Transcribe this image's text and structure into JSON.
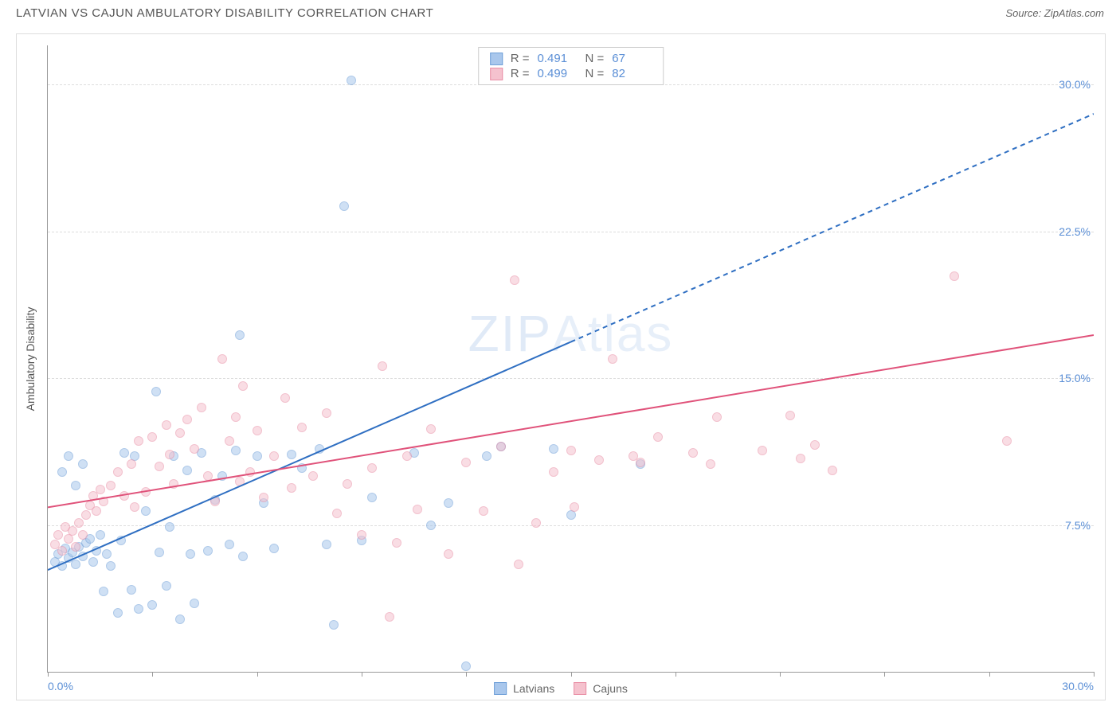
{
  "header": {
    "title": "LATVIAN VS CAJUN AMBULATORY DISABILITY CORRELATION CHART",
    "source": "Source: ZipAtlas.com"
  },
  "watermark": {
    "bold": "ZIP",
    "thin": "Atlas"
  },
  "chart": {
    "type": "scatter",
    "ylabel": "Ambulatory Disability",
    "xlim": [
      0,
      30
    ],
    "ylim": [
      0,
      32
    ],
    "background_color": "#ffffff",
    "grid_color": "#dddddd",
    "axis_color": "#999999",
    "tick_label_color": "#5b8fd6",
    "tick_fontsize": 14,
    "ylabel_fontsize": 14,
    "marker_size": 12,
    "marker_opacity": 0.55,
    "yticks": [
      7.5,
      15.0,
      22.5,
      30.0
    ],
    "ytick_labels": [
      "7.5%",
      "15.0%",
      "22.5%",
      "30.0%"
    ],
    "xticks": [
      0,
      3,
      6,
      9,
      12,
      15,
      18,
      21,
      24,
      27,
      30
    ],
    "xtick_labels_shown": {
      "0": "0.0%",
      "30": "30.0%"
    },
    "series": [
      {
        "name": "Latvians",
        "color_fill": "#a9c7ec",
        "color_stroke": "#6f9fd8",
        "trend": {
          "color": "#2f6fc2",
          "width": 2,
          "x1": 0,
          "y1": 5.2,
          "x2": 30,
          "y2": 28.5,
          "solid_until_x": 15,
          "dash": "6,5"
        },
        "points": [
          [
            0.2,
            5.6
          ],
          [
            0.3,
            6.0
          ],
          [
            0.4,
            5.4
          ],
          [
            0.5,
            6.3
          ],
          [
            0.6,
            5.8
          ],
          [
            0.7,
            6.1
          ],
          [
            0.8,
            5.5
          ],
          [
            0.9,
            6.4
          ],
          [
            1.0,
            5.9
          ],
          [
            1.1,
            6.6
          ],
          [
            0.4,
            10.2
          ],
          [
            0.6,
            11.0
          ],
          [
            0.8,
            9.5
          ],
          [
            1.0,
            10.6
          ],
          [
            1.2,
            6.8
          ],
          [
            1.3,
            5.6
          ],
          [
            1.4,
            6.2
          ],
          [
            1.5,
            7.0
          ],
          [
            1.6,
            4.1
          ],
          [
            1.7,
            6.0
          ],
          [
            1.8,
            5.4
          ],
          [
            2.0,
            3.0
          ],
          [
            2.1,
            6.7
          ],
          [
            2.2,
            11.2
          ],
          [
            2.4,
            4.2
          ],
          [
            2.5,
            11.0
          ],
          [
            2.6,
            3.2
          ],
          [
            2.8,
            8.2
          ],
          [
            3.0,
            3.4
          ],
          [
            3.1,
            14.3
          ],
          [
            3.2,
            6.1
          ],
          [
            3.4,
            4.4
          ],
          [
            3.5,
            7.4
          ],
          [
            3.6,
            11.0
          ],
          [
            3.8,
            2.7
          ],
          [
            4.0,
            10.3
          ],
          [
            4.1,
            6.0
          ],
          [
            4.2,
            3.5
          ],
          [
            4.4,
            11.2
          ],
          [
            4.6,
            6.2
          ],
          [
            4.8,
            8.8
          ],
          [
            5.0,
            10.0
          ],
          [
            5.2,
            6.5
          ],
          [
            5.4,
            11.3
          ],
          [
            5.5,
            17.2
          ],
          [
            5.6,
            5.9
          ],
          [
            6.0,
            11.0
          ],
          [
            6.2,
            8.6
          ],
          [
            6.5,
            6.3
          ],
          [
            7.0,
            11.1
          ],
          [
            7.3,
            10.4
          ],
          [
            7.8,
            11.4
          ],
          [
            8.0,
            6.5
          ],
          [
            8.2,
            2.4
          ],
          [
            8.5,
            23.8
          ],
          [
            8.7,
            30.2
          ],
          [
            9.0,
            6.7
          ],
          [
            9.3,
            8.9
          ],
          [
            10.5,
            11.2
          ],
          [
            11.0,
            7.5
          ],
          [
            11.5,
            8.6
          ],
          [
            12.0,
            0.3
          ],
          [
            12.6,
            11.0
          ],
          [
            13.0,
            11.5
          ],
          [
            14.5,
            11.4
          ],
          [
            15.0,
            8.0
          ],
          [
            17.0,
            10.6
          ]
        ]
      },
      {
        "name": "Cajuns",
        "color_fill": "#f5c2ce",
        "color_stroke": "#e98fa6",
        "trend": {
          "color": "#e0527a",
          "width": 2,
          "x1": 0,
          "y1": 8.4,
          "x2": 30,
          "y2": 17.2,
          "solid_until_x": 30,
          "dash": ""
        },
        "points": [
          [
            0.2,
            6.5
          ],
          [
            0.3,
            7.0
          ],
          [
            0.4,
            6.2
          ],
          [
            0.5,
            7.4
          ],
          [
            0.6,
            6.8
          ],
          [
            0.7,
            7.2
          ],
          [
            0.8,
            6.4
          ],
          [
            0.9,
            7.6
          ],
          [
            1.0,
            7.0
          ],
          [
            1.1,
            8.0
          ],
          [
            1.2,
            8.5
          ],
          [
            1.3,
            9.0
          ],
          [
            1.4,
            8.2
          ],
          [
            1.5,
            9.3
          ],
          [
            1.6,
            8.7
          ],
          [
            1.8,
            9.5
          ],
          [
            2.0,
            10.2
          ],
          [
            2.2,
            9.0
          ],
          [
            2.4,
            10.6
          ],
          [
            2.5,
            8.4
          ],
          [
            2.6,
            11.8
          ],
          [
            2.8,
            9.2
          ],
          [
            3.0,
            12.0
          ],
          [
            3.2,
            10.5
          ],
          [
            3.4,
            12.6
          ],
          [
            3.5,
            11.1
          ],
          [
            3.6,
            9.6
          ],
          [
            3.8,
            12.2
          ],
          [
            4.0,
            12.9
          ],
          [
            4.2,
            11.4
          ],
          [
            4.4,
            13.5
          ],
          [
            4.6,
            10.0
          ],
          [
            4.8,
            8.7
          ],
          [
            5.0,
            16.0
          ],
          [
            5.2,
            11.8
          ],
          [
            5.4,
            13.0
          ],
          [
            5.5,
            9.7
          ],
          [
            5.6,
            14.6
          ],
          [
            5.8,
            10.2
          ],
          [
            6.0,
            12.3
          ],
          [
            6.2,
            8.9
          ],
          [
            6.5,
            11.0
          ],
          [
            6.8,
            14.0
          ],
          [
            7.0,
            9.4
          ],
          [
            7.3,
            12.5
          ],
          [
            7.6,
            10.0
          ],
          [
            8.0,
            13.2
          ],
          [
            8.3,
            8.1
          ],
          [
            8.6,
            9.6
          ],
          [
            9.0,
            7.0
          ],
          [
            9.3,
            10.4
          ],
          [
            9.6,
            15.6
          ],
          [
            9.8,
            2.8
          ],
          [
            10.0,
            6.6
          ],
          [
            10.3,
            11.0
          ],
          [
            10.6,
            8.3
          ],
          [
            11.0,
            12.4
          ],
          [
            11.5,
            6.0
          ],
          [
            12.0,
            10.7
          ],
          [
            12.5,
            8.2
          ],
          [
            13.0,
            11.5
          ],
          [
            13.4,
            20.0
          ],
          [
            13.5,
            5.5
          ],
          [
            14.0,
            7.6
          ],
          [
            14.5,
            10.2
          ],
          [
            15.0,
            11.3
          ],
          [
            15.1,
            8.4
          ],
          [
            15.8,
            10.8
          ],
          [
            16.2,
            16.0
          ],
          [
            16.8,
            11.0
          ],
          [
            17.0,
            10.7
          ],
          [
            17.5,
            12.0
          ],
          [
            18.5,
            11.2
          ],
          [
            19.0,
            10.6
          ],
          [
            19.2,
            13.0
          ],
          [
            20.5,
            11.3
          ],
          [
            21.3,
            13.1
          ],
          [
            21.6,
            10.9
          ],
          [
            22.0,
            11.6
          ],
          [
            22.5,
            10.3
          ],
          [
            26.0,
            20.2
          ],
          [
            27.5,
            11.8
          ]
        ]
      }
    ],
    "legend_top": [
      {
        "swatch_fill": "#a9c7ec",
        "swatch_stroke": "#6f9fd8",
        "r_label": "R =",
        "r_value": "0.491",
        "n_label": "N =",
        "n_value": "67"
      },
      {
        "swatch_fill": "#f5c2ce",
        "swatch_stroke": "#e98fa6",
        "r_label": "R =",
        "r_value": "0.499",
        "n_label": "N =",
        "n_value": "82"
      }
    ],
    "legend_bottom": [
      {
        "swatch_fill": "#a9c7ec",
        "swatch_stroke": "#6f9fd8",
        "label": "Latvians"
      },
      {
        "swatch_fill": "#f5c2ce",
        "swatch_stroke": "#e98fa6",
        "label": "Cajuns"
      }
    ]
  }
}
